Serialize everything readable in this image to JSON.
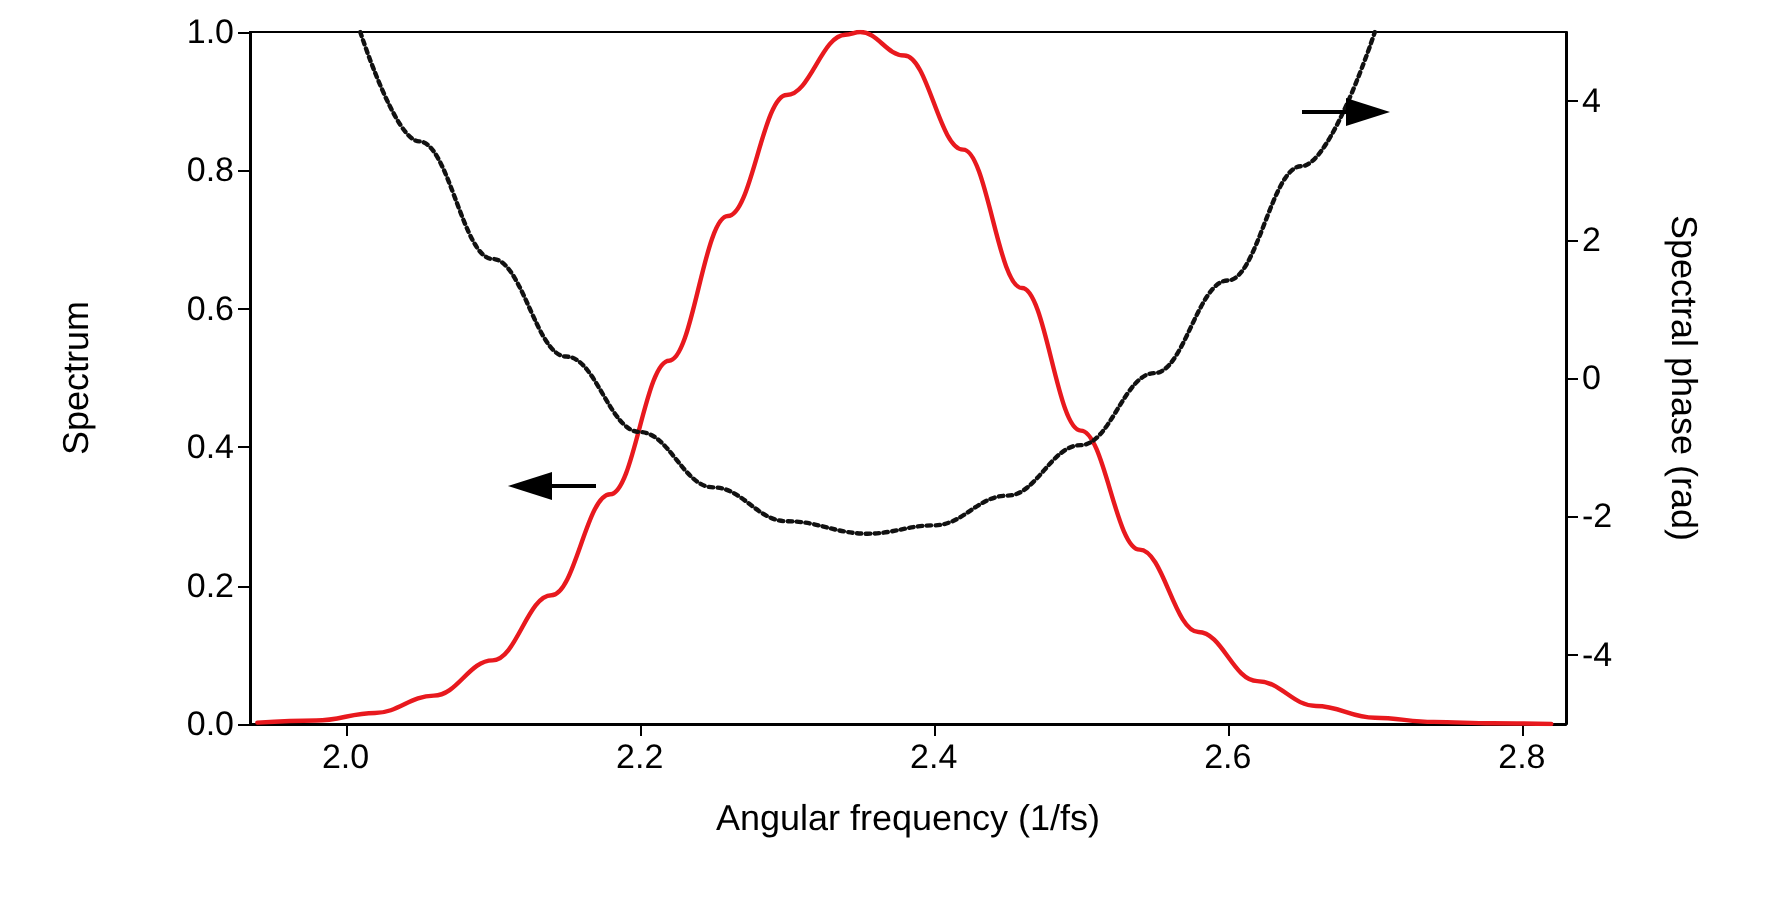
{
  "chart_data": {
    "type": "line",
    "xlabel": "Angular frequency (1/fs)",
    "ylabel": "Spectrum",
    "y2label": "Spectral phase (rad)",
    "xlim": [
      1.935,
      2.83
    ],
    "xticks": [
      {
        "value": 2.0,
        "label": "2.0"
      },
      {
        "value": 2.2,
        "label": "2.2"
      },
      {
        "value": 2.4,
        "label": "2.4"
      },
      {
        "value": 2.6,
        "label": "2.6"
      },
      {
        "value": 2.8,
        "label": "2.8"
      }
    ],
    "ylim": [
      0,
      1
    ],
    "yticks": [
      {
        "value": 0,
        "label": "0.0"
      },
      {
        "value": 0.2,
        "label": "0.2"
      },
      {
        "value": 0.4,
        "label": "0.4"
      },
      {
        "value": 0.6,
        "label": "0.6"
      },
      {
        "value": 0.8,
        "label": "0.8"
      },
      {
        "value": 1,
        "label": "1.0"
      }
    ],
    "y2lim": [
      -5,
      5
    ],
    "y2ticks": [
      -4,
      -2,
      0,
      2,
      4
    ],
    "marker": "none",
    "series": [
      {
        "color": "#e8191e",
        "line_style": "solid",
        "x": [
          1.94,
          1.98,
          2.02,
          2.06,
          2.1,
          2.14,
          2.18,
          2.22,
          2.26,
          2.3,
          2.34,
          2.35,
          2.38,
          2.42,
          2.46,
          2.5,
          2.54,
          2.58,
          2.62,
          2.66,
          2.7,
          2.74,
          2.78,
          2.82
        ],
        "values": [
          0.002,
          0.005,
          0.016,
          0.041,
          0.092,
          0.186,
          0.332,
          0.525,
          0.734,
          0.909,
          0.996,
          1.0,
          0.966,
          0.83,
          0.63,
          0.424,
          0.252,
          0.133,
          0.062,
          0.026,
          0.009,
          0.003,
          0.001,
          0.0
        ]
      },
      {
        "color": "#111111",
        "line_style": "dotted",
        "axis": "y2",
        "x": [
          2.01,
          2.05,
          2.1,
          2.15,
          2.2,
          2.25,
          2.3,
          2.355,
          2.4,
          2.45,
          2.5,
          2.55,
          2.6,
          2.65,
          2.7
        ],
        "values": [
          5.0,
          3.42,
          1.72,
          0.31,
          -0.78,
          -1.58,
          -2.07,
          -2.25,
          -2.13,
          -1.7,
          -0.97,
          0.07,
          1.41,
          3.06,
          5.0
        ]
      }
    ]
  }
}
